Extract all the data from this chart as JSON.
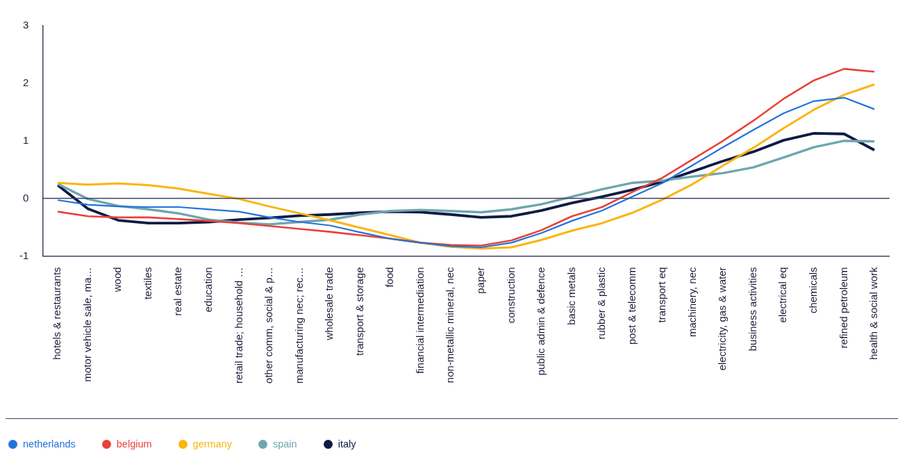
{
  "chart_data": {
    "type": "line",
    "categories": [
      "hotels & restaurants",
      "motor vehicle sale, ma…",
      "wood",
      "textiles",
      "real estate",
      "education",
      "retail trade; household …",
      "other comm, social & p…",
      "manufacturing nec; rec…",
      "wholesale trade",
      "transport & storage",
      "food",
      "financial intermediation",
      "non-metallic mineral, nec",
      "paper",
      "construction",
      "public admin & defence",
      "basic metals",
      "rubber & plastic",
      "post & telecomm",
      "transport eq",
      "machinery, nec",
      "electricity, gas & water",
      "business activities",
      "electrical eq",
      "chemicals",
      "refined petroleum",
      "health & social work"
    ],
    "series": [
      {
        "name": "netherlands",
        "color": "#2173d9",
        "values": [
          -0.03,
          -0.11,
          -0.14,
          -0.15,
          -0.15,
          -0.19,
          -0.23,
          -0.33,
          -0.41,
          -0.47,
          -0.59,
          -0.7,
          -0.77,
          -0.83,
          -0.85,
          -0.77,
          -0.6,
          -0.39,
          -0.21,
          0.03,
          0.27,
          0.58,
          0.89,
          1.19,
          1.48,
          1.69,
          1.75,
          1.55
        ]
      },
      {
        "name": "belgium",
        "color": "#e8423a",
        "values": [
          -0.23,
          -0.31,
          -0.33,
          -0.33,
          -0.36,
          -0.39,
          -0.43,
          -0.48,
          -0.53,
          -0.58,
          -0.64,
          -0.7,
          -0.77,
          -0.81,
          -0.82,
          -0.73,
          -0.55,
          -0.31,
          -0.15,
          0.11,
          0.36,
          0.68,
          1.0,
          1.35,
          1.73,
          2.05,
          2.25,
          2.2
        ]
      },
      {
        "name": "germany",
        "color": "#fbb40f",
        "values": [
          0.27,
          0.24,
          0.26,
          0.23,
          0.17,
          0.08,
          -0.01,
          -0.14,
          -0.26,
          -0.38,
          -0.51,
          -0.64,
          -0.77,
          -0.84,
          -0.87,
          -0.85,
          -0.72,
          -0.56,
          -0.43,
          -0.25,
          -0.02,
          0.25,
          0.57,
          0.88,
          1.22,
          1.54,
          1.8,
          1.98
        ]
      },
      {
        "name": "spain",
        "color": "#6fa6ae",
        "values": [
          0.25,
          -0.01,
          -0.13,
          -0.19,
          -0.26,
          -0.37,
          -0.42,
          -0.45,
          -0.41,
          -0.37,
          -0.28,
          -0.22,
          -0.2,
          -0.22,
          -0.24,
          -0.19,
          -0.1,
          0.03,
          0.16,
          0.27,
          0.31,
          0.38,
          0.44,
          0.54,
          0.71,
          0.89,
          1.0,
          0.99
        ]
      },
      {
        "name": "italy",
        "color": "#0f1b45",
        "values": [
          0.23,
          -0.18,
          -0.38,
          -0.43,
          -0.43,
          -0.41,
          -0.37,
          -0.34,
          -0.3,
          -0.28,
          -0.25,
          -0.23,
          -0.24,
          -0.28,
          -0.33,
          -0.31,
          -0.21,
          -0.08,
          0.03,
          0.15,
          0.29,
          0.47,
          0.65,
          0.81,
          1.01,
          1.13,
          1.12,
          0.84
        ]
      }
    ],
    "ylim": [
      -1,
      3
    ],
    "yticks": [
      -1,
      0,
      1,
      2,
      3
    ],
    "grid": false,
    "legend": "bottom left",
    "marker": "none",
    "line_style": "solid",
    "ref_lines": [
      {
        "axis": "y",
        "value": 0,
        "color": "#3b4160"
      }
    ]
  }
}
